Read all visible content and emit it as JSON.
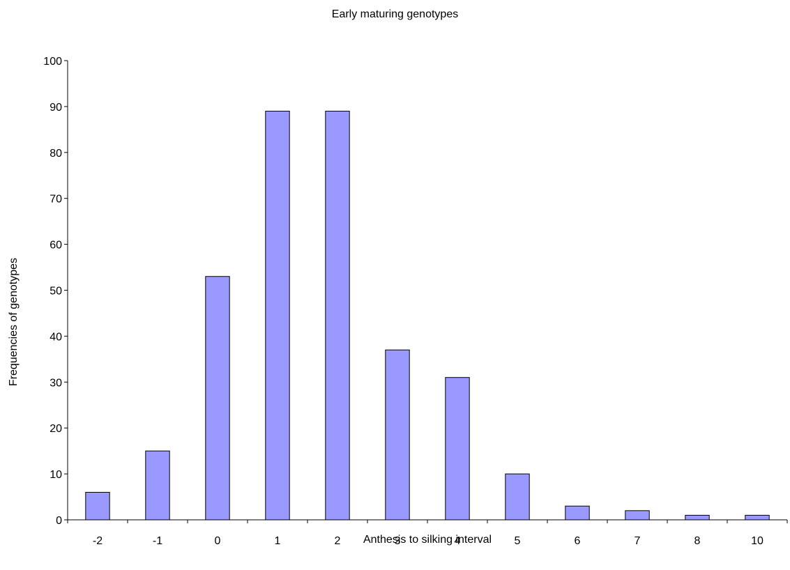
{
  "chart_data": {
    "type": "bar",
    "title": "Early maturing genotypes",
    "xlabel": "Anthesis to silking interval",
    "ylabel": "Frequencies of genotypes",
    "categories": [
      "-2",
      "-1",
      "0",
      "1",
      "2",
      "3",
      "4",
      "5",
      "6",
      "7",
      "8",
      "10"
    ],
    "values": [
      6,
      15,
      53,
      89,
      89,
      37,
      31,
      10,
      3,
      2,
      1,
      1
    ],
    "ylim": [
      0,
      100
    ],
    "yticks": [
      0,
      10,
      20,
      30,
      40,
      50,
      60,
      70,
      80,
      90,
      100
    ],
    "grid": false,
    "legend": "none",
    "bar_color": "#9999ff",
    "bar_edge_color": "#000000"
  }
}
